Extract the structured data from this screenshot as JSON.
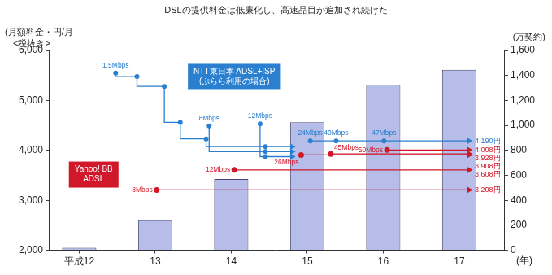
{
  "chart_data": {
    "type": "bar",
    "title": "DSLの提供料金は低廉化し、高速品目が追加され続けた",
    "y_label": [
      "(月額料金・円/月",
      "<税抜き>"
    ],
    "y2_label": "(万契約)",
    "x_label": "(年)",
    "x": [
      12,
      13,
      14,
      15,
      16,
      17
    ],
    "xlim": [
      11.6,
      17.6
    ],
    "xticks": [
      {
        "value": 12,
        "label": "平成12"
      },
      13,
      14,
      15,
      16,
      17
    ],
    "ylim": [
      2000,
      6000
    ],
    "yticks": [
      {
        "value": 2000,
        "label": "2,000"
      },
      {
        "value": 3000,
        "label": "3,000"
      },
      {
        "value": 4000,
        "label": "4,000"
      },
      {
        "value": 5000,
        "label": "5,000"
      },
      {
        "value": 6000,
        "label": "6,000"
      }
    ],
    "y2lim": [
      0,
      1600
    ],
    "y2ticks": [
      0,
      200,
      400,
      600,
      800,
      {
        "value": 1000,
        "label": "1,000"
      },
      {
        "value": 1200,
        "label": "1,200"
      },
      {
        "value": 1400,
        "label": "1,400"
      },
      {
        "value": 1600,
        "label": "1,600"
      }
    ],
    "grid": false,
    "series": [
      {
        "type": "bar",
        "axis": "y2",
        "color": "#b5bde8",
        "values": [
          20,
          240,
          570,
          1025,
          1325,
          1445
        ]
      }
    ],
    "line_groups": [
      {
        "label": [
          "NTT東日本 ADSL+ISP",
          "(ぷらら利用の場合)"
        ],
        "color": "#2a7fcf",
        "series": [
          {
            "type": "line",
            "line_style": "stepped",
            "marker": "circle",
            "x": [
              12.48,
              12.76,
              13.12,
              13.33,
              13.67,
              14.45,
              14.8
            ],
            "values": [
              5550,
              5480,
              5280,
              4560,
              4230,
              4075,
              4075
            ],
            "point_labels": [
              "1.5Mbps",
              null,
              null,
              null,
              null,
              null,
              null
            ]
          },
          {
            "type": "line",
            "line_style": "stepped",
            "marker": "circle",
            "x": [
              13.71,
              14.45,
              14.8
            ],
            "values": [
              4490,
              3975,
              3975
            ],
            "point_labels": [
              "8Mbps",
              null,
              null
            ]
          },
          {
            "type": "line",
            "line_style": "stepped",
            "marker": "circle",
            "x": [
              14.38,
              14.45,
              14.8
            ],
            "values": [
              4530,
              3875,
              3875
            ],
            "point_labels": [
              "12Mbps",
              null,
              null
            ]
          },
          {
            "type": "line",
            "line_style": "stepped",
            "marker": "circle",
            "x": [
              15.04,
              15.38,
              16.01,
              17.13
            ],
            "values": [
              4190,
              4190,
              4190,
              4190
            ],
            "point_labels": [
              "24Mbps",
              "40Mbps",
              "47Mbps",
              null
            ],
            "value_labels": [
              null,
              null,
              null,
              "4,190円"
            ]
          }
        ]
      },
      {
        "label": [
          "Yahoo! BB",
          "ADSL"
        ],
        "color": "#d0182a",
        "series": [
          {
            "type": "line",
            "line_style": "solid",
            "marker": "circle",
            "x": [
              13.02,
              17.13
            ],
            "values": [
              3208,
              3208
            ],
            "point_labels": [
              "8Mbps",
              null
            ],
            "value_labels": [
              null,
              "3,208円"
            ]
          },
          {
            "type": "line",
            "line_style": "solid",
            "marker": "circle",
            "x": [
              14.04,
              17.13
            ],
            "values": [
              3608,
              3608
            ],
            "point_labels": [
              "12Mbps",
              null
            ],
            "value_labels": [
              null,
              "3,608円"
            ]
          },
          {
            "type": "line",
            "line_style": "solid",
            "marker": "circle",
            "x": [
              14.92,
              17.13
            ],
            "values": [
              3908,
              3908
            ],
            "point_labels": [
              "26Mbps",
              null
            ],
            "value_labels": [
              null,
              "3,908円"
            ]
          },
          {
            "type": "line",
            "line_style": "solid",
            "marker": "circle",
            "x": [
              15.31,
              17.13
            ],
            "values": [
              3928,
              3928
            ],
            "point_labels": [
              "45Mbps",
              null
            ],
            "value_labels": [
              null,
              "3,928円"
            ]
          },
          {
            "type": "line",
            "line_style": "solid",
            "marker": "circle",
            "x": [
              16.05,
              17.13
            ],
            "values": [
              4008,
              4008
            ],
            "point_labels": [
              "50Mbps",
              null
            ],
            "value_labels": [
              null,
              "4,008円"
            ]
          }
        ]
      }
    ]
  }
}
